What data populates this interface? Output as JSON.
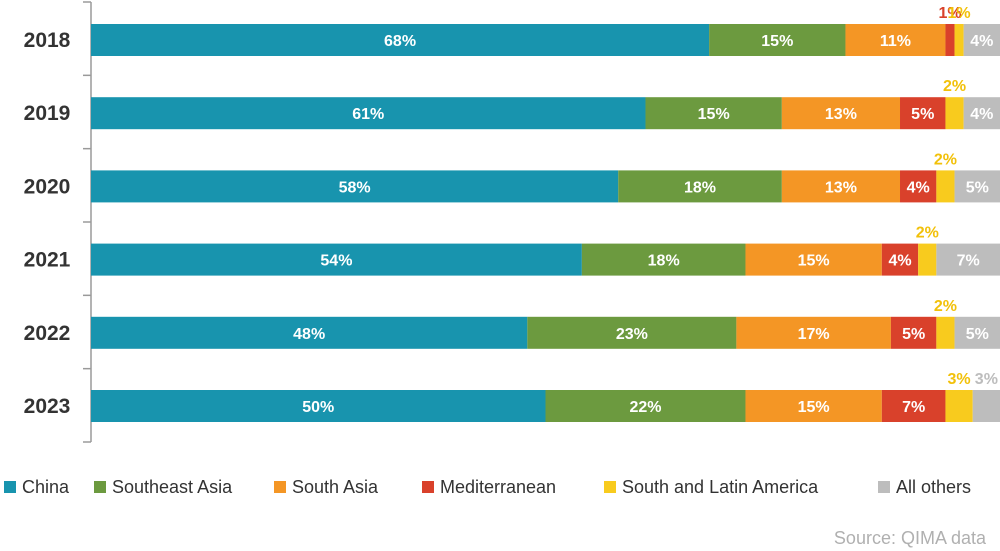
{
  "chart_data": {
    "type": "bar",
    "orientation": "horizontal",
    "stacked": true,
    "categories": [
      "2018",
      "2019",
      "2020",
      "2021",
      "2022",
      "2023"
    ],
    "series": [
      {
        "name": "China",
        "color": "#1894AE",
        "values": [
          68,
          61,
          58,
          54,
          48,
          50
        ],
        "labels": [
          "68%",
          "61%",
          "58%",
          "54%",
          "48%",
          "50%"
        ]
      },
      {
        "name": "Southeast Asia",
        "color": "#6C9A3F",
        "values": [
          15,
          15,
          18,
          18,
          23,
          22
        ],
        "labels": [
          "15%",
          "15%",
          "18%",
          "18%",
          "23%",
          "22%"
        ]
      },
      {
        "name": "South Asia",
        "color": "#F49625",
        "values": [
          11,
          13,
          13,
          15,
          17,
          15
        ],
        "labels": [
          "11%",
          "13%",
          "13%",
          "15%",
          "17%",
          "15%"
        ]
      },
      {
        "name": "Mediterranean",
        "color": "#D9412B",
        "values": [
          1,
          5,
          4,
          4,
          5,
          7
        ],
        "labels": [
          "1%",
          "5%",
          "4%",
          "4%",
          "5%",
          "7%"
        ]
      },
      {
        "name": "South and Latin America",
        "color": "#F8CB1E",
        "values": [
          1,
          2,
          2,
          2,
          2,
          3
        ],
        "labels": [
          "1%",
          "2%",
          "2%",
          "2%",
          "2%",
          "3%"
        ]
      },
      {
        "name": "All others",
        "color": "#BDBDBD",
        "values": [
          4,
          4,
          5,
          7,
          5,
          3
        ],
        "labels": [
          "4%",
          "4%",
          "5%",
          "7%",
          "5%",
          "3%"
        ]
      }
    ],
    "legend_position": "bottom",
    "grid": false
  },
  "source": "Source: QIMA data"
}
